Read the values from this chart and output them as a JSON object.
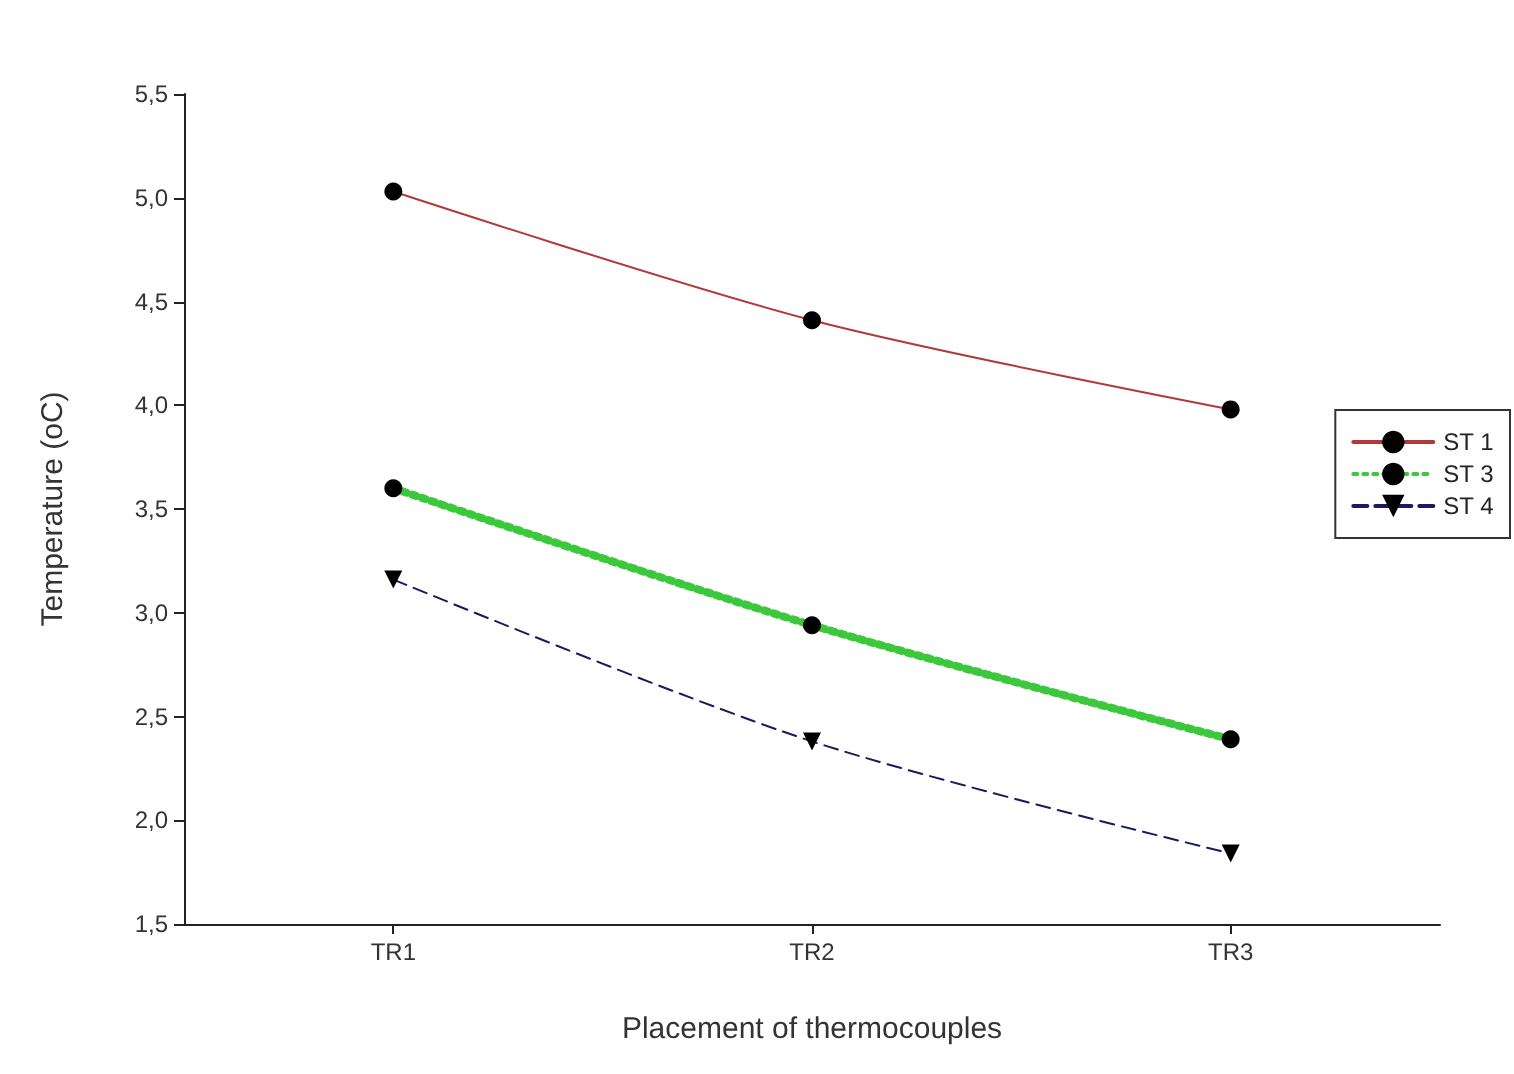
{
  "chart_data": {
    "type": "line",
    "xlabel": "Placement of thermocouples",
    "ylabel": "Temperature (oC)",
    "categories": [
      "TR1",
      "TR2",
      "TR3"
    ],
    "series": [
      {
        "name": "ST 1",
        "color": "#b03a3a",
        "values": [
          5.03,
          4.41,
          3.98
        ],
        "marker": "circle",
        "line_style": "solid"
      },
      {
        "name": "ST 3",
        "color": "#3cc83c",
        "values": [
          3.6,
          2.94,
          2.39
        ],
        "marker": "circle",
        "line_style": "dotted"
      },
      {
        "name": "ST 4",
        "color": "#1a1a60",
        "values": [
          3.16,
          2.38,
          1.84
        ],
        "marker": "triangle",
        "line_style": "dashed"
      }
    ],
    "ylim": [
      1.5,
      5.5
    ],
    "yticks": [
      {
        "value": 1.5,
        "label": "1,5"
      },
      {
        "value": 2,
        "label": "2,0"
      },
      {
        "value": 2.5,
        "label": "2,5"
      },
      {
        "value": 3,
        "label": "3,0"
      },
      {
        "value": 3.5,
        "label": "3,5"
      },
      {
        "value": 4,
        "label": "4,0"
      },
      {
        "value": 4.5,
        "label": "4,5"
      },
      {
        "value": 5,
        "label": "5,0"
      },
      {
        "value": 5.5,
        "label": "5,5"
      }
    ],
    "grid": false,
    "legend": "right"
  }
}
